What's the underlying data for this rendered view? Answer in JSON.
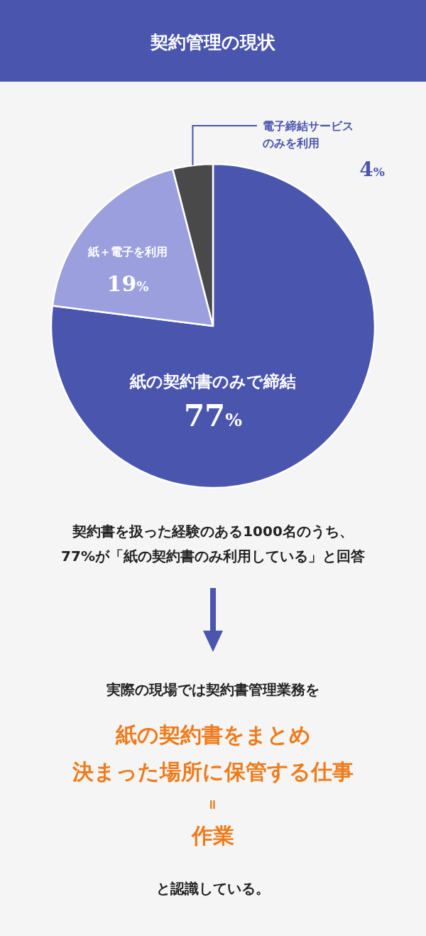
{
  "chart_data": {
    "type": "pie",
    "title": "契約管理の現状",
    "categories": [
      "紙の契約書のみで締結",
      "紙＋電子を利用",
      "電子締結サービスのみを利用"
    ],
    "values": [
      77,
      19,
      4
    ],
    "value_labels": [
      "77%",
      "19%",
      "4%"
    ],
    "colors": [
      "#4a55ae",
      "#9b9fdd",
      "#494949"
    ],
    "annotations": [
      "契約書を扱った経験のある1000名のうち、",
      "77%が「紙の契約書のみ利用している」と回答",
      "実際の現場では契約書管理業務を",
      "紙の契約書をまとめ",
      "決まった場所に保管する仕事",
      "＝",
      "作業",
      "と認識している。"
    ]
  }
}
